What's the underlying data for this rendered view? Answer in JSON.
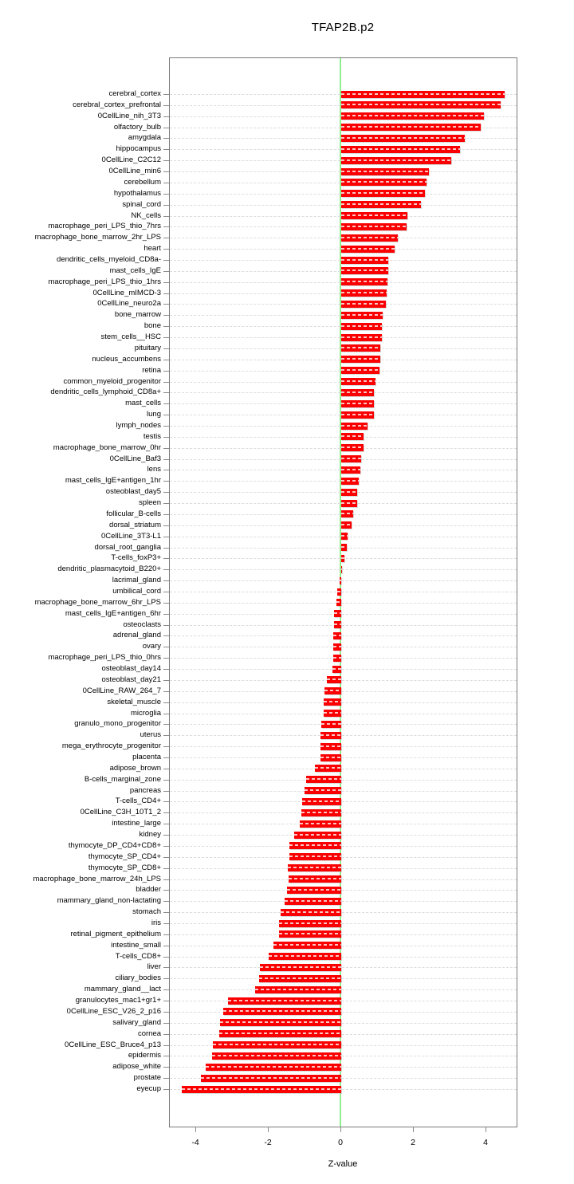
{
  "title": "TFAP2B.p2",
  "xlabel": "Z-value",
  "chart_data": {
    "type": "bar",
    "orientation": "horizontal",
    "title": "TFAP2B.p2",
    "xlabel": "Z-value",
    "ylabel": "",
    "xlim": [
      -4.73,
      4.86
    ],
    "xticks": [
      -4,
      -2,
      0,
      2,
      4
    ],
    "grid": true,
    "legend": "none",
    "bar_color": "#fb0000",
    "zero_line_color": "#90ee90",
    "gridline_color": "#dcdcdc",
    "categories": [
      "cerebral_cortex",
      "cerebral_cortex_prefrontal",
      "0CellLine_nih_3T3",
      "olfactory_bulb",
      "amygdala",
      "hippocampus",
      "0CellLine_C2C12",
      "0CellLine_min6",
      "cerebellum",
      "hypothalamus",
      "spinal_cord",
      "NK_cells",
      "macrophage_peri_LPS_thio_7hrs",
      "macrophage_bone_marrow_2hr_LPS",
      "heart",
      "dendritic_cells_myeloid_CD8a-",
      "mast_cells_IgE",
      "macrophage_peri_LPS_thio_1hrs",
      "0CellLine_mIMCD-3",
      "0CellLine_neuro2a",
      "bone_marrow",
      "bone",
      "stem_cells__HSC",
      "pituitary",
      "nucleus_accumbens",
      "retina",
      "common_myeloid_progenitor",
      "dendritic_cells_lymphoid_CD8a+",
      "mast_cells",
      "lung",
      "lymph_nodes",
      "testis",
      "macrophage_bone_marrow_0hr",
      "0CellLine_Baf3",
      "lens",
      "mast_cells_IgE+antigen_1hr",
      "osteoblast_day5",
      "spleen",
      "follicular_B-cells",
      "dorsal_striatum",
      "0CellLine_3T3-L1",
      "dorsal_root_ganglia",
      "T-cells_foxP3+",
      "dendritic_plasmacytoid_B220+",
      "lacrimal_gland",
      "umbilical_cord",
      "macrophage_bone_marrow_6hr_LPS",
      "mast_cells_IgE+antigen_6hr",
      "osteoclasts",
      "adrenal_gland",
      "ovary",
      "macrophage_peri_LPS_thio_0hrs",
      "osteoblast_day14",
      "osteoblast_day21",
      "0CellLine_RAW_264_7",
      "skeletal_muscle",
      "microglia",
      "granulo_mono_progenitor",
      "uterus",
      "mega_erythrocyte_progenitor",
      "placenta",
      "adipose_brown",
      "B-cells_marginal_zone",
      "pancreas",
      "T-cells_CD4+",
      "0CellLine_C3H_10T1_2",
      "intestine_large",
      "kidney",
      "thymocyte_DP_CD4+CD8+",
      "thymocyte_SP_CD4+",
      "thymocyte_SP_CD8+",
      "macrophage_bone_marrow_24h_LPS",
      "bladder",
      "mammary_gland_non-lactating",
      "stomach",
      "iris",
      "retinal_pigment_epithelium",
      "intestine_small",
      "T-cells_CD8+",
      "liver",
      "ciliary_bodies",
      "mammary_gland__lact",
      "granulocytes_mac1+gr1+",
      "0CellLine_ESC_V26_2_p16",
      "salivary_gland",
      "cornea",
      "0CellLine_ESC_Bruce4_p13",
      "epidermis",
      "adipose_white",
      "prostate",
      "eyecup"
    ],
    "values": [
      4.51,
      4.4,
      3.93,
      3.85,
      3.4,
      3.27,
      3.03,
      2.42,
      2.35,
      2.31,
      2.2,
      1.83,
      1.81,
      1.57,
      1.48,
      1.3,
      1.3,
      1.28,
      1.25,
      1.22,
      1.14,
      1.13,
      1.11,
      1.08,
      1.07,
      1.06,
      0.95,
      0.91,
      0.9,
      0.9,
      0.73,
      0.62,
      0.62,
      0.56,
      0.52,
      0.48,
      0.45,
      0.45,
      0.32,
      0.29,
      0.18,
      0.15,
      0.08,
      0.01,
      -0.04,
      -0.1,
      -0.14,
      -0.19,
      -0.2,
      -0.21,
      -0.22,
      -0.22,
      -0.24,
      -0.4,
      -0.47,
      -0.48,
      -0.48,
      -0.55,
      -0.57,
      -0.57,
      -0.58,
      -0.72,
      -0.97,
      -1.01,
      -1.07,
      -1.09,
      -1.14,
      -1.29,
      -1.43,
      -1.43,
      -1.47,
      -1.46,
      -1.49,
      -1.55,
      -1.66,
      -1.71,
      -1.72,
      -1.87,
      -1.99,
      -2.25,
      -2.27,
      -2.38,
      -3.11,
      -3.25,
      -3.33,
      -3.37,
      -3.53,
      -3.55,
      -3.73,
      -3.86,
      -4.4
    ]
  }
}
